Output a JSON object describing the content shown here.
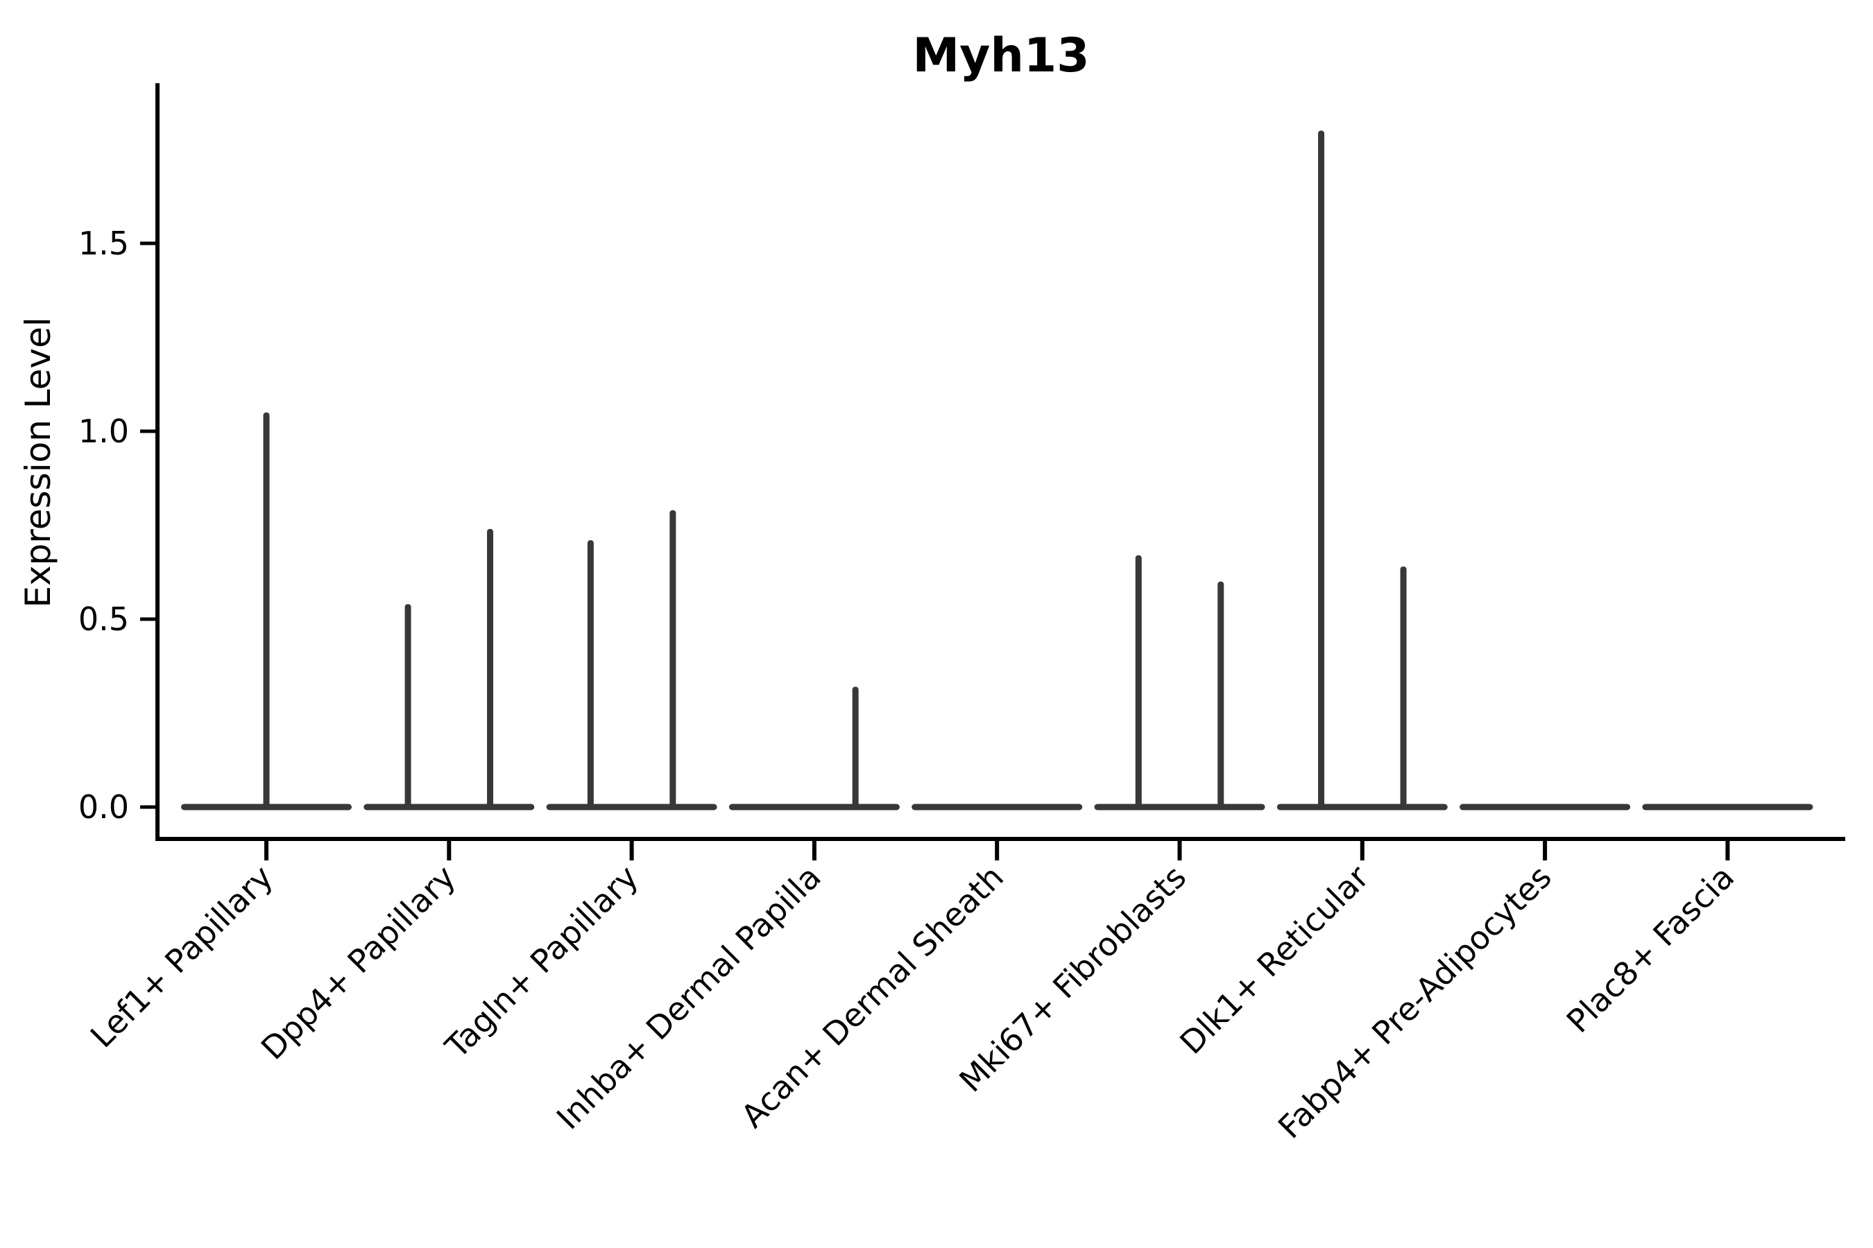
{
  "chart_data": {
    "type": "violin",
    "title": "Myh13",
    "xlabel": "",
    "ylabel": "Expression Level",
    "grid": false,
    "legend": null,
    "ylim": [
      -0.09,
      1.91
    ],
    "yticks": [
      0.0,
      0.5,
      1.0,
      1.5
    ],
    "ytick_labels": [
      "0.0",
      "0.5",
      "1.0",
      "1.5"
    ],
    "categories": [
      "Lef1+ Papillary",
      "Dpp4+ Papillary",
      "Tagln+ Papillary",
      "Inhba+ Dermal Papilla",
      "Acan+ Dermal Sheath",
      "Mki67+ Fibroblasts",
      "Dlk1+ Reticular",
      "Fabp4+ Pre-Adipocytes",
      "Plac8+ Fascia"
    ],
    "violins": [
      {
        "category": "Lef1+ Papillary",
        "baseline_value": 0,
        "spikes": [
          {
            "pos": 0,
            "value": 1.05
          }
        ]
      },
      {
        "category": "Dpp4+ Papillary",
        "baseline_value": 0,
        "spikes": [
          {
            "pos": -0.225,
            "value": 0.54
          },
          {
            "pos": 0.225,
            "value": 0.74
          }
        ]
      },
      {
        "category": "Tagln+ Papillary",
        "baseline_value": 0,
        "spikes": [
          {
            "pos": -0.225,
            "value": 0.71
          },
          {
            "pos": 0.225,
            "value": 0.79
          }
        ]
      },
      {
        "category": "Inhba+ Dermal Papilla",
        "baseline_value": 0,
        "spikes": [
          {
            "pos": 0.225,
            "value": 0.32
          }
        ]
      },
      {
        "category": "Acan+ Dermal Sheath",
        "baseline_value": 0,
        "spikes": []
      },
      {
        "category": "Mki67+ Fibroblasts",
        "baseline_value": 0,
        "spikes": [
          {
            "pos": -0.225,
            "value": 0.67
          },
          {
            "pos": 0.225,
            "value": 0.6
          }
        ]
      },
      {
        "category": "Dlk1+ Reticular",
        "baseline_value": 0,
        "spikes": [
          {
            "pos": -0.225,
            "value": 1.8
          },
          {
            "pos": 0.225,
            "value": 0.64
          }
        ]
      },
      {
        "category": "Fabp4+ Pre-Adipocytes",
        "baseline_value": 0,
        "spikes": []
      },
      {
        "category": "Plac8+ Fascia",
        "baseline_value": 0,
        "spikes": []
      }
    ],
    "colors": {
      "violin": "#383838",
      "axis": "#000000",
      "background": "#ffffff"
    }
  }
}
